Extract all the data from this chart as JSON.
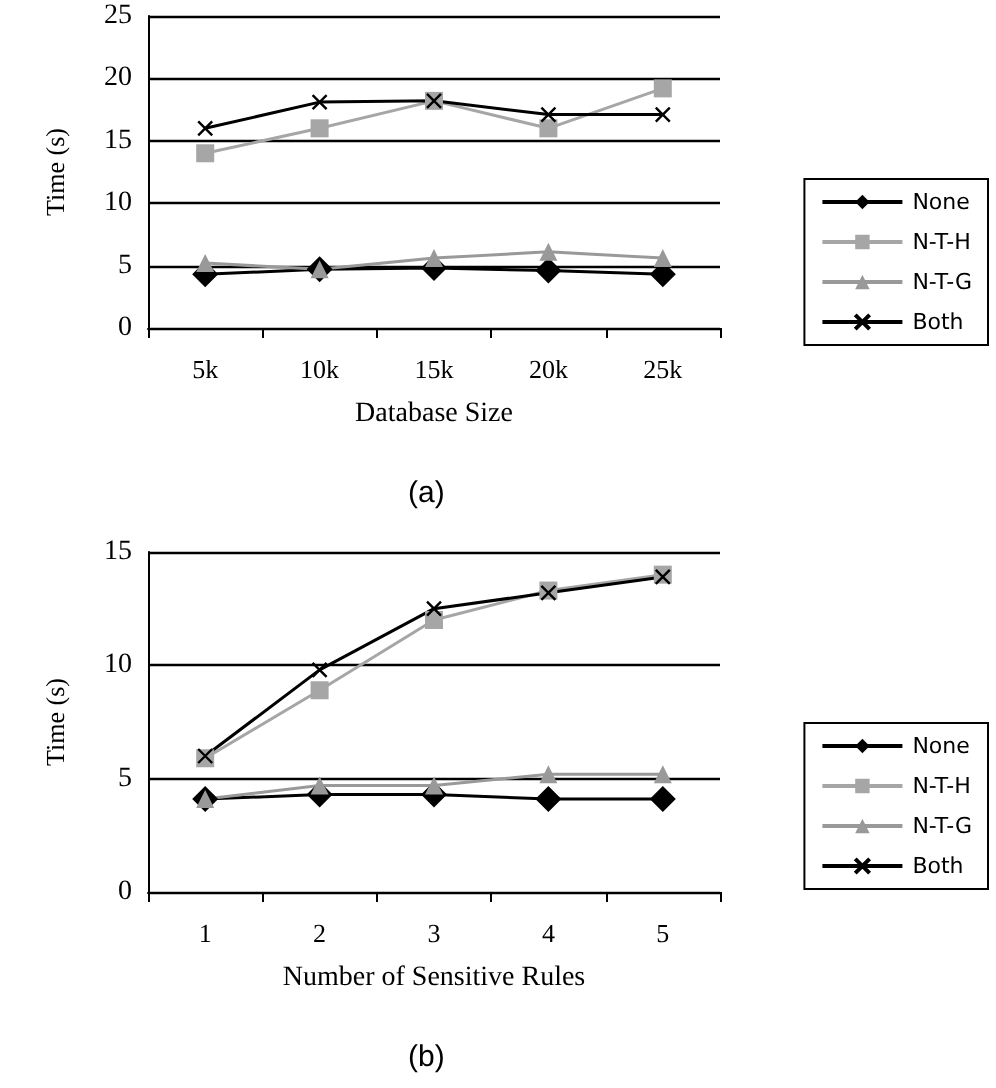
{
  "chart_data": [
    {
      "type": "line",
      "xlabel": "Database Size",
      "ylabel": "Time (s)",
      "categories": [
        "5k",
        "10k",
        "15k",
        "20k",
        "25k"
      ],
      "ylim": [
        0,
        25
      ],
      "yticks": [
        0,
        5,
        10,
        15,
        20,
        25
      ],
      "grid": "y",
      "legend": "right",
      "annotations": [
        "(a)"
      ],
      "series": [
        {
          "name": "None",
          "color": "#000000",
          "marker": "diamond",
          "values": [
            4.3,
            4.7,
            4.8,
            4.6,
            4.3
          ]
        },
        {
          "name": "N-T-H",
          "color": "#a6a6a6",
          "marker": "square",
          "values": [
            14,
            16,
            18.2,
            16,
            19.2
          ]
        },
        {
          "name": "N-T-G",
          "color": "#999999",
          "marker": "triangle",
          "values": [
            5.2,
            4.7,
            5.6,
            6.1,
            5.6
          ]
        },
        {
          "name": "Both",
          "color": "#000000",
          "marker": "cross",
          "values": [
            16,
            18.1,
            18.2,
            17.1,
            17.1
          ]
        }
      ]
    },
    {
      "type": "line",
      "xlabel": "Number of Sensitive Rules",
      "ylabel": "Time (s)",
      "categories": [
        "1",
        "2",
        "3",
        "4",
        "5"
      ],
      "ylim": [
        0,
        15
      ],
      "yticks": [
        0,
        5,
        10,
        15
      ],
      "grid": "y",
      "legend": "right",
      "annotations": [
        "(b)"
      ],
      "series": [
        {
          "name": "None",
          "color": "#000000",
          "marker": "diamond",
          "values": [
            4.1,
            4.3,
            4.3,
            4.1,
            4.1
          ]
        },
        {
          "name": "N-T-H",
          "color": "#a6a6a6",
          "marker": "square",
          "values": [
            5.9,
            8.9,
            12,
            13.3,
            14
          ]
        },
        {
          "name": "N-T-G",
          "color": "#999999",
          "marker": "triangle",
          "values": [
            4.1,
            4.7,
            4.7,
            5.2,
            5.2
          ]
        },
        {
          "name": "Both",
          "color": "#000000",
          "marker": "cross",
          "values": [
            6,
            9.8,
            12.5,
            13.2,
            13.9
          ]
        }
      ]
    }
  ]
}
